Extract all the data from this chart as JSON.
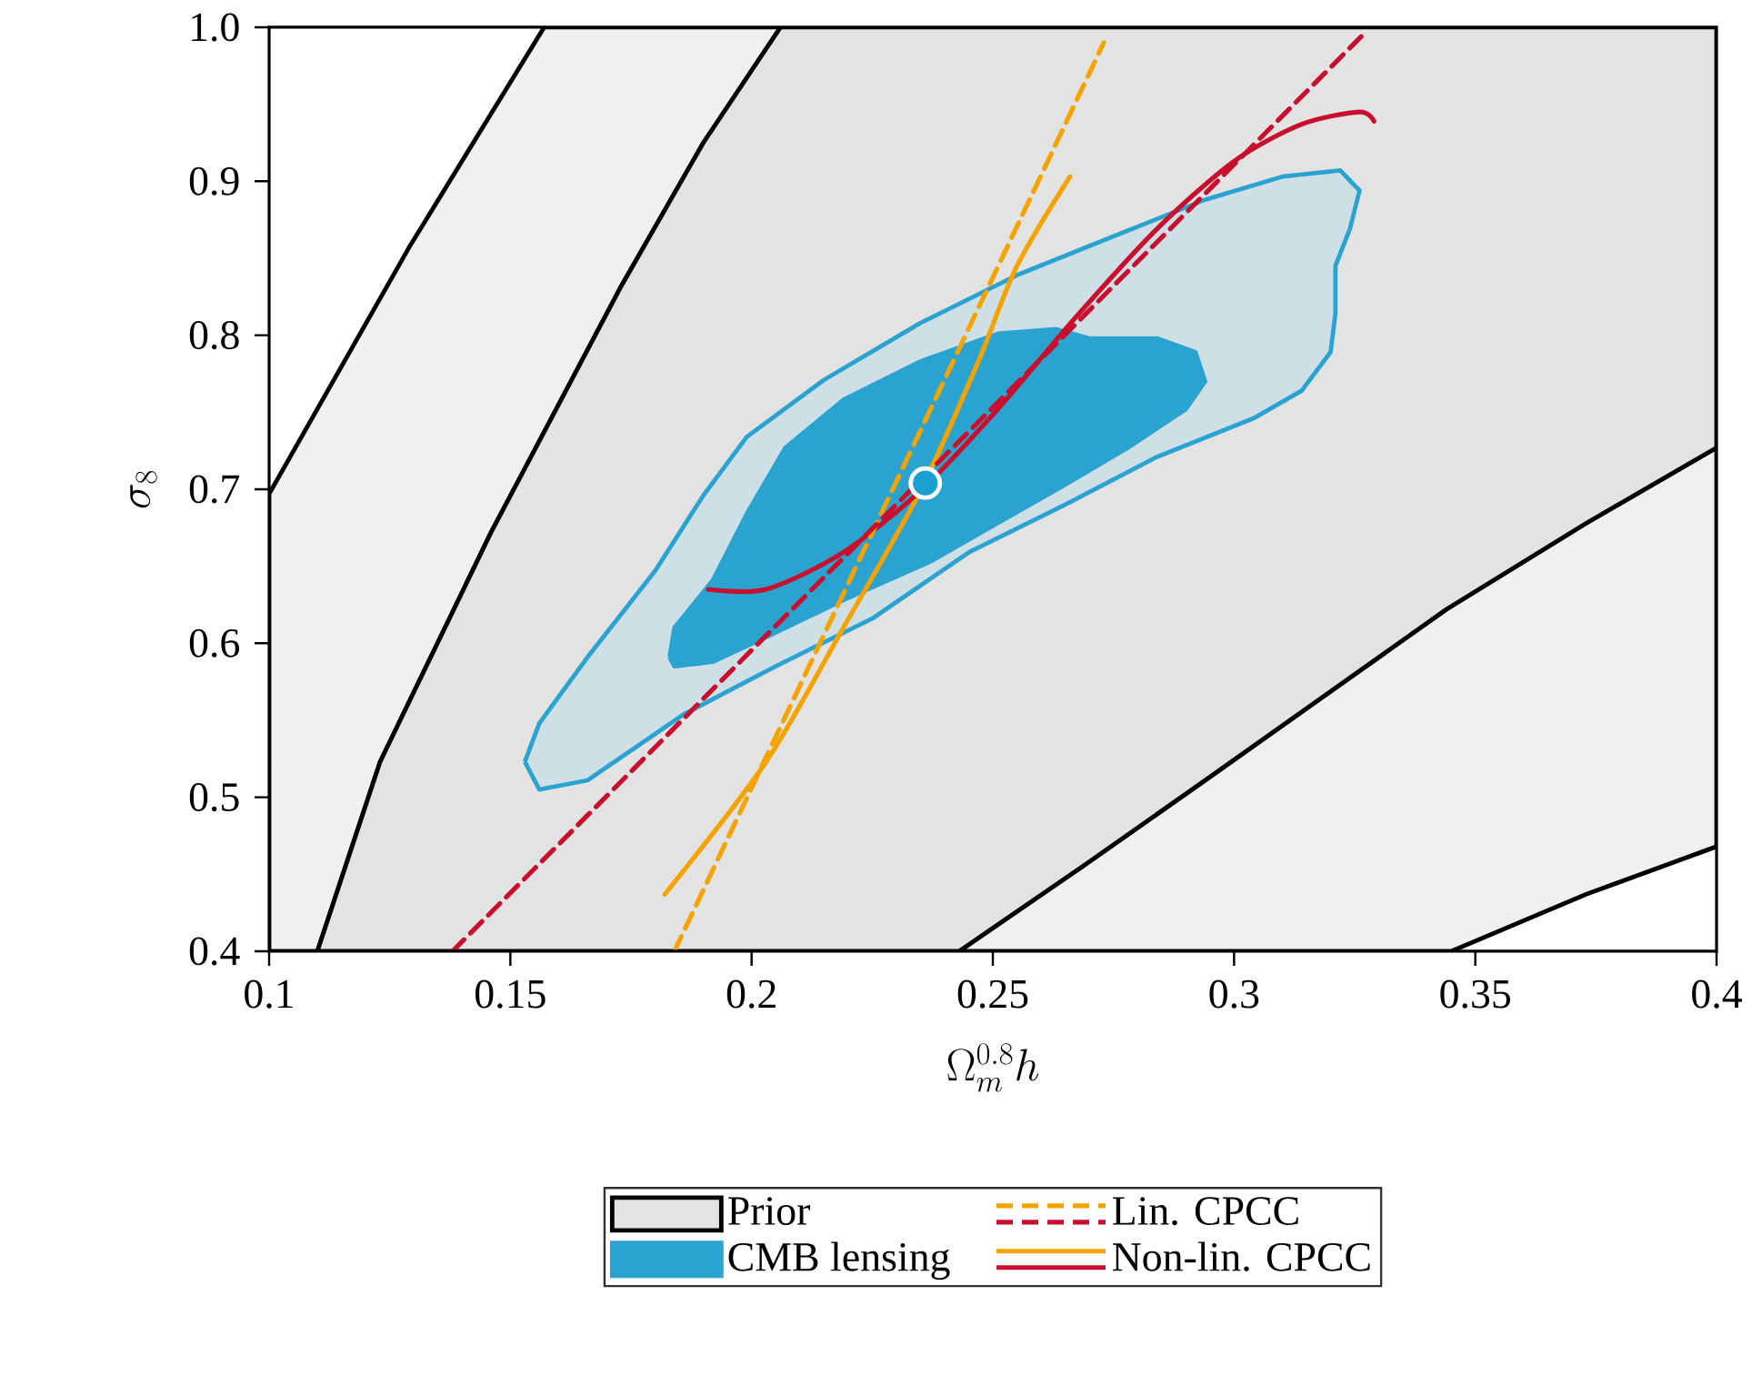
{
  "chart_data": {
    "type": "line",
    "xlabel": "\\Omega_m^{0.8}h",
    "ylabel": "\\sigma_8",
    "xlim": [
      0.1,
      0.4
    ],
    "ylim": [
      0.4,
      1.0
    ],
    "xticks": [
      0.1,
      0.15,
      0.2,
      0.25,
      0.3,
      0.35,
      0.4
    ],
    "yticks": [
      0.4,
      0.5,
      0.6,
      0.7,
      0.8,
      0.9,
      {
        "value": 1.0,
        "label": "1.0"
      }
    ],
    "legend": "bottom",
    "grid": false,
    "series": [
      {
        "type": "area",
        "color": "#f0f0f0",
        "x": [
          0.1,
          0.1,
          0.129,
          0.157,
          0.206,
          0.19,
          0.173,
          0.146,
          0.123,
          0.11,
          0.1
        ],
        "values": [
          0.4,
          0.697,
          0.857,
          1.0,
          1.0,
          0.925,
          0.832,
          0.672,
          0.523,
          0.4,
          0.4
        ]
      },
      {
        "type": "area",
        "color": "#f0f0f0",
        "x": [
          0.243,
          0.269,
          0.294,
          0.344,
          0.373,
          0.4,
          0.4,
          0.373,
          0.345,
          0.243
        ],
        "values": [
          0.4,
          0.456,
          0.511,
          0.622,
          0.678,
          0.727,
          0.468,
          0.437,
          0.4,
          0.4
        ]
      },
      {
        "type": "area",
        "name": "Prior",
        "color": "#e3e3e3",
        "x": [
          0.11,
          0.123,
          0.146,
          0.173,
          0.19,
          0.206,
          0.4,
          0.4,
          0.373,
          0.344,
          0.294,
          0.269,
          0.243,
          0.11
        ],
        "values": [
          0.4,
          0.523,
          0.672,
          0.832,
          0.925,
          1.0,
          1.0,
          0.727,
          0.678,
          0.622,
          0.511,
          0.456,
          0.4,
          0.4
        ]
      },
      {
        "type": "area",
        "color": "#cfdfe6",
        "x": [
          0.153,
          0.156,
          0.166,
          0.18,
          0.19,
          0.199,
          0.215,
          0.235,
          0.255,
          0.274,
          0.294,
          0.31,
          0.322,
          0.326,
          0.324,
          0.321,
          0.321,
          0.32,
          0.314,
          0.304,
          0.284,
          0.265,
          0.245,
          0.225,
          0.205,
          0.186,
          0.166,
          0.156,
          0.153
        ],
        "values": [
          0.523,
          0.548,
          0.591,
          0.647,
          0.696,
          0.734,
          0.771,
          0.808,
          0.839,
          0.863,
          0.888,
          0.903,
          0.907,
          0.894,
          0.869,
          0.845,
          0.814,
          0.789,
          0.764,
          0.746,
          0.721,
          0.69,
          0.659,
          0.616,
          0.585,
          0.554,
          0.511,
          0.505,
          0.523
        ]
      },
      {
        "type": "area",
        "name": "CMB lensing",
        "color": "#2ba3d0",
        "x": [
          0.183,
          0.184,
          0.192,
          0.199,
          0.207,
          0.219,
          0.235,
          0.251,
          0.263,
          0.27,
          0.284,
          0.292,
          0.294,
          0.29,
          0.278,
          0.265,
          0.251,
          0.237,
          0.219,
          0.203,
          0.192,
          0.184,
          0.183
        ],
        "values": [
          0.591,
          0.61,
          0.641,
          0.684,
          0.727,
          0.758,
          0.783,
          0.801,
          0.804,
          0.798,
          0.798,
          0.789,
          0.77,
          0.752,
          0.727,
          0.703,
          0.678,
          0.653,
          0.628,
          0.604,
          0.588,
          0.585,
          0.591
        ]
      },
      {
        "name": "Lin. CPCC",
        "color": "#f5a300",
        "line_style": "dashed",
        "x": [
          0.184,
          0.273
        ],
        "values": [
          0.4,
          0.99
        ]
      },
      {
        "color": "#c8102e",
        "line_style": "dashed",
        "x": [
          0.138,
          0.236,
          0.327
        ],
        "values": [
          0.4,
          0.709,
          0.996
        ]
      },
      {
        "name": "Non-lin. CPCC",
        "color": "#f5a300",
        "line_style": "solid",
        "x": [
          0.182,
          0.203,
          0.219,
          0.235,
          0.247,
          0.255,
          0.266
        ],
        "values": [
          0.437,
          0.523,
          0.61,
          0.699,
          0.783,
          0.845,
          0.903
        ]
      },
      {
        "color": "#c8102e",
        "line_style": "solid",
        "x": [
          0.191,
          0.203,
          0.219,
          0.235,
          0.251,
          0.267,
          0.284,
          0.3,
          0.314,
          0.326,
          0.329
        ],
        "values": [
          0.635,
          0.635,
          0.659,
          0.699,
          0.752,
          0.811,
          0.869,
          0.913,
          0.937,
          0.945,
          0.939
        ]
      },
      {
        "type": "scatter",
        "color": "#1a9fd1",
        "marker": "circle",
        "x": [
          0.236
        ],
        "values": [
          0.704
        ]
      }
    ]
  }
}
